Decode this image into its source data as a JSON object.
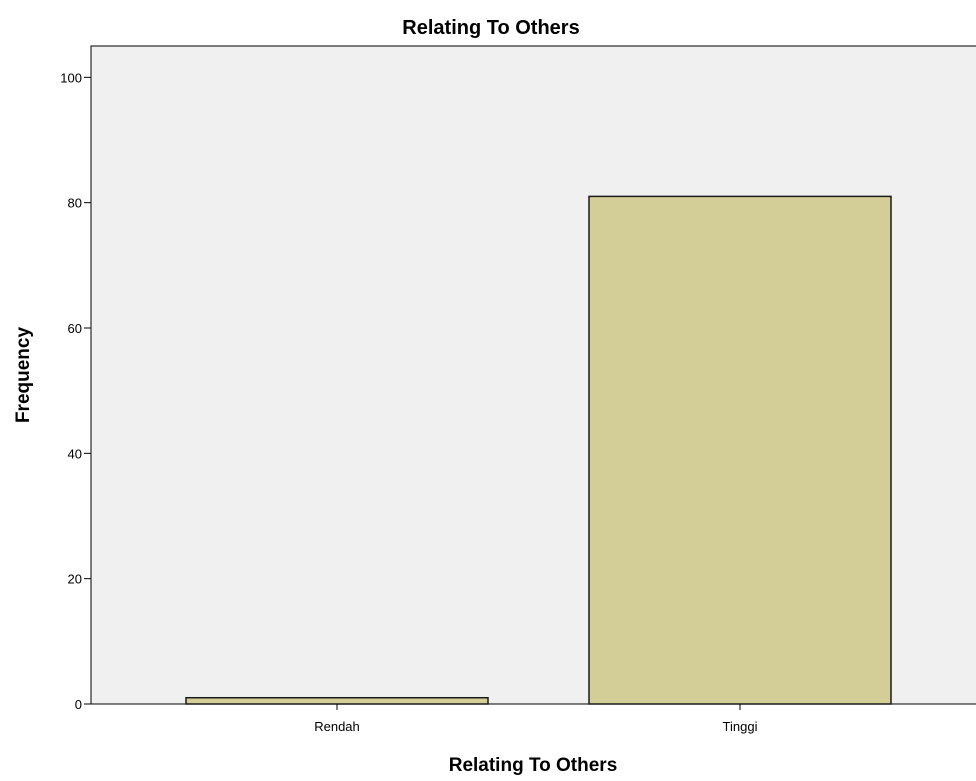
{
  "chart_data": {
    "type": "bar",
    "title": "Relating To Others",
    "xlabel": "Relating To Others",
    "ylabel": "Frequency",
    "categories": [
      "Rendah",
      "Tinggi"
    ],
    "values": [
      1,
      81
    ],
    "ylim": [
      0,
      105
    ],
    "yticks": [
      0,
      20,
      40,
      60,
      80,
      100
    ],
    "grid": false,
    "legend": "none",
    "colors": {
      "plot_background": "#f0f0f0",
      "bar_fill": "#d3cd97",
      "bar_stroke": "#1a1a1a",
      "axis": "#000000"
    }
  }
}
